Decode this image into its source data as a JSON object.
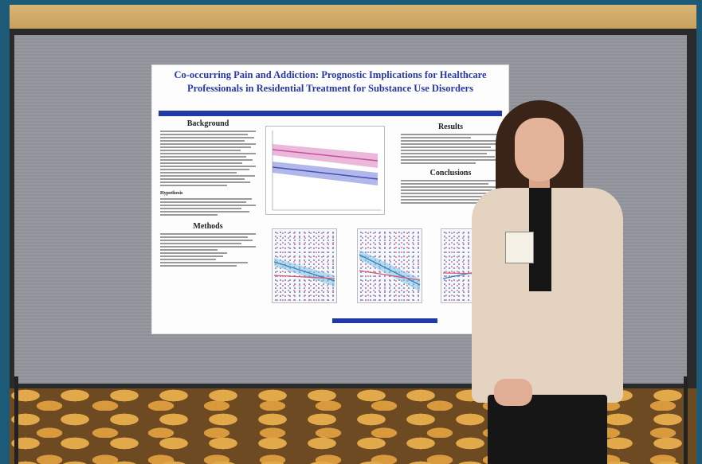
{
  "poster": {
    "title": "Co-occurring Pain and Addiction: Prognostic Implications for Healthcare Professionals in Residential Treatment for Substance Use Disorders",
    "sections": {
      "background": "Background",
      "methods": "Methods",
      "results": "Results",
      "conclusions": "Conclusions",
      "hypothesis": "Hypothesis"
    }
  },
  "colors": {
    "poster_title": "#2738a8",
    "accent_bar": "#2238a6",
    "board": "#92969c",
    "series_pink": "#d85b74",
    "series_blue": "#5a72c6"
  }
}
